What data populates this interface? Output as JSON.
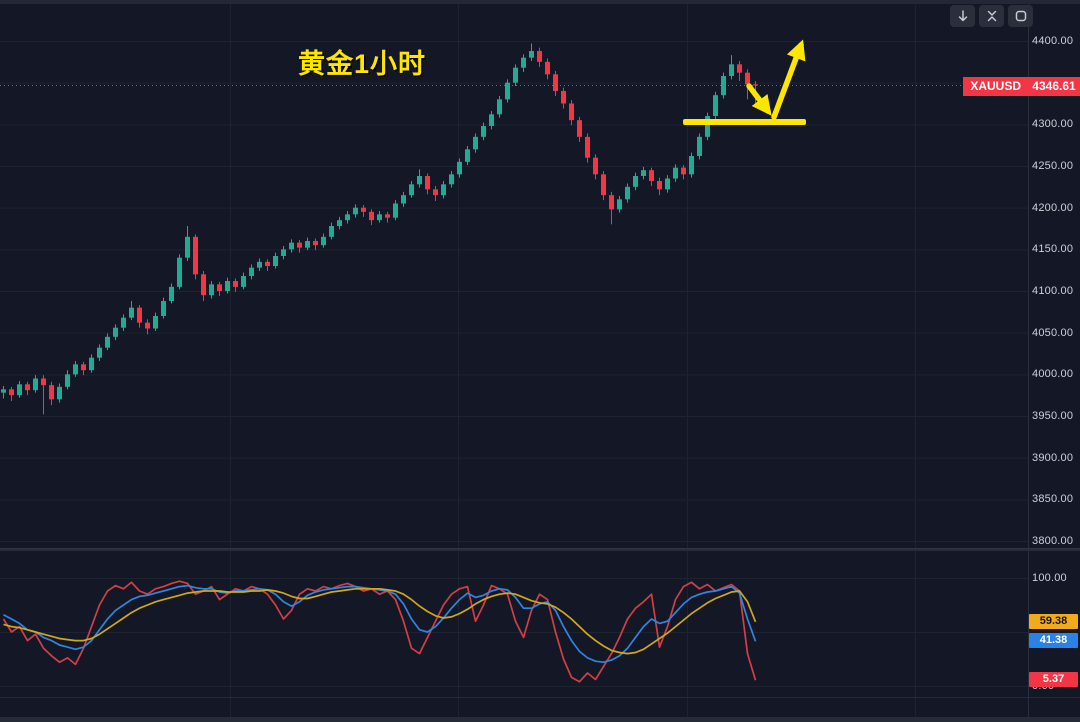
{
  "annotations": {
    "title": {
      "text": "黄金1小时",
      "color": "#ffe600"
    },
    "support_line": {
      "name": "yellow-support-line",
      "color": "#ffe600"
    },
    "bounce_arrow": {
      "name": "bounce-up-arrow",
      "color": "#ffe600"
    }
  },
  "toolbar": {
    "buttons": [
      {
        "name": "scroll-to-recent-bar",
        "icon": "down-arrow-icon"
      },
      {
        "name": "collapse-pane",
        "icon": "collapse-icon"
      },
      {
        "name": "fullscreen",
        "icon": "fullscreen-icon"
      }
    ]
  },
  "price_scale": {
    "last_price_label": {
      "symbol": "XAUUSD",
      "value": "4346.61",
      "bg": "#f23645"
    },
    "ticks": [
      {
        "label": "4400.00",
        "price": 4400
      },
      {
        "label": "4300.00",
        "price": 4300
      },
      {
        "label": "4250.00",
        "price": 4250
      },
      {
        "label": "4200.00",
        "price": 4200
      },
      {
        "label": "4150.00",
        "price": 4150
      },
      {
        "label": "4100.00",
        "price": 4100
      },
      {
        "label": "4050.00",
        "price": 4050
      },
      {
        "label": "4000.00",
        "price": 4000
      },
      {
        "label": "3950.00",
        "price": 3950
      },
      {
        "label": "3900.00",
        "price": 3900
      },
      {
        "label": "3850.00",
        "price": 3850
      },
      {
        "label": "3800.00",
        "price": 3800
      }
    ]
  },
  "indicator_scale": {
    "ticks": [
      {
        "label": "100.00",
        "value": 100
      },
      {
        "label": "0.00",
        "value": 0
      }
    ],
    "value_labels": [
      {
        "text": "59.38",
        "value": 59.38,
        "bg": "#f2a91c",
        "fg": "#11141c"
      },
      {
        "text": "41.38",
        "value": 41.38,
        "bg": "#2a82e4",
        "fg": "#ffffff"
      },
      {
        "text": "5.37",
        "value": 5.37,
        "bg": "#f23645",
        "fg": "#ffffff"
      }
    ]
  },
  "chart_data": [
    {
      "type": "candlestick",
      "symbol": "XAUUSD",
      "timeframe": "1小时",
      "last_price": 4346.61,
      "ylim": [
        3790,
        4410
      ],
      "up_color": "#22ab94",
      "down_color": "#f23645",
      "grid": true,
      "candles": [
        [
          3978,
          3986,
          3971,
          3982
        ],
        [
          3982,
          3985,
          3968,
          3975
        ],
        [
          3975,
          3992,
          3972,
          3988
        ],
        [
          3988,
          3991,
          3975,
          3981
        ],
        [
          3981,
          3999,
          3978,
          3995
        ],
        [
          3995,
          3999,
          3952,
          3987
        ],
        [
          3987,
          3991,
          3963,
          3970
        ],
        [
          3970,
          3989,
          3966,
          3985
        ],
        [
          3985,
          4005,
          3982,
          4000
        ],
        [
          4000,
          4016,
          3997,
          4012
        ],
        [
          4012,
          4015,
          3999,
          4005
        ],
        [
          4005,
          4024,
          4002,
          4020
        ],
        [
          4020,
          4036,
          4016,
          4032
        ],
        [
          4032,
          4049,
          4029,
          4045
        ],
        [
          4045,
          4060,
          4041,
          4056
        ],
        [
          4056,
          4072,
          4052,
          4068
        ],
        [
          4068,
          4088,
          4065,
          4080
        ],
        [
          4080,
          4083,
          4056,
          4062
        ],
        [
          4062,
          4066,
          4048,
          4055
        ],
        [
          4055,
          4074,
          4052,
          4070
        ],
        [
          4070,
          4092,
          4067,
          4088
        ],
        [
          4088,
          4109,
          4085,
          4105
        ],
        [
          4105,
          4144,
          4102,
          4140
        ],
        [
          4140,
          4178,
          4136,
          4165
        ],
        [
          4165,
          4168,
          4114,
          4120
        ],
        [
          4120,
          4124,
          4088,
          4095
        ],
        [
          4095,
          4112,
          4091,
          4108
        ],
        [
          4108,
          4111,
          4094,
          4100
        ],
        [
          4100,
          4116,
          4097,
          4112
        ],
        [
          4112,
          4115,
          4099,
          4105
        ],
        [
          4105,
          4122,
          4102,
          4118
        ],
        [
          4118,
          4132,
          4114,
          4128
        ],
        [
          4128,
          4139,
          4124,
          4135
        ],
        [
          4135,
          4138,
          4124,
          4130
        ],
        [
          4130,
          4146,
          4127,
          4142
        ],
        [
          4142,
          4154,
          4138,
          4150
        ],
        [
          4150,
          4162,
          4146,
          4158
        ],
        [
          4158,
          4161,
          4146,
          4152
        ],
        [
          4152,
          4164,
          4149,
          4160
        ],
        [
          4160,
          4163,
          4149,
          4155
        ],
        [
          4155,
          4169,
          4152,
          4165
        ],
        [
          4165,
          4182,
          4162,
          4178
        ],
        [
          4178,
          4189,
          4174,
          4185
        ],
        [
          4185,
          4196,
          4181,
          4192
        ],
        [
          4192,
          4204,
          4188,
          4200
        ],
        [
          4200,
          4203,
          4189,
          4195
        ],
        [
          4195,
          4198,
          4179,
          4185
        ],
        [
          4185,
          4196,
          4182,
          4192
        ],
        [
          4192,
          4195,
          4182,
          4188
        ],
        [
          4188,
          4209,
          4185,
          4205
        ],
        [
          4205,
          4219,
          4201,
          4215
        ],
        [
          4215,
          4232,
          4212,
          4228
        ],
        [
          4228,
          4246,
          4224,
          4238
        ],
        [
          4238,
          4241,
          4216,
          4222
        ],
        [
          4222,
          4226,
          4208,
          4215
        ],
        [
          4215,
          4232,
          4211,
          4228
        ],
        [
          4228,
          4244,
          4224,
          4240
        ],
        [
          4240,
          4259,
          4236,
          4255
        ],
        [
          4255,
          4274,
          4251,
          4270
        ],
        [
          4270,
          4289,
          4266,
          4285
        ],
        [
          4285,
          4302,
          4281,
          4298
        ],
        [
          4298,
          4316,
          4294,
          4312
        ],
        [
          4312,
          4334,
          4308,
          4330
        ],
        [
          4330,
          4354,
          4326,
          4350
        ],
        [
          4350,
          4372,
          4346,
          4368
        ],
        [
          4368,
          4384,
          4363,
          4380
        ],
        [
          4380,
          4397,
          4376,
          4388
        ],
        [
          4388,
          4392,
          4369,
          4375
        ],
        [
          4375,
          4379,
          4354,
          4360
        ],
        [
          4360,
          4364,
          4334,
          4340
        ],
        [
          4340,
          4344,
          4319,
          4325
        ],
        [
          4325,
          4329,
          4299,
          4305
        ],
        [
          4305,
          4309,
          4279,
          4285
        ],
        [
          4285,
          4289,
          4254,
          4260
        ],
        [
          4260,
          4264,
          4234,
          4240
        ],
        [
          4240,
          4244,
          4209,
          4215
        ],
        [
          4215,
          4219,
          4180,
          4198
        ],
        [
          4198,
          4214,
          4194,
          4210
        ],
        [
          4210,
          4229,
          4206,
          4225
        ],
        [
          4225,
          4242,
          4221,
          4238
        ],
        [
          4238,
          4249,
          4234,
          4245
        ],
        [
          4245,
          4248,
          4226,
          4232
        ],
        [
          4232,
          4236,
          4215,
          4222
        ],
        [
          4222,
          4239,
          4218,
          4235
        ],
        [
          4235,
          4252,
          4231,
          4248
        ],
        [
          4248,
          4251,
          4234,
          4240
        ],
        [
          4240,
          4266,
          4236,
          4262
        ],
        [
          4262,
          4289,
          4258,
          4285
        ],
        [
          4285,
          4314,
          4281,
          4310
        ],
        [
          4310,
          4339,
          4306,
          4335
        ],
        [
          4335,
          4362,
          4331,
          4358
        ],
        [
          4358,
          4383,
          4354,
          4372
        ],
        [
          4372,
          4376,
          4352,
          4362
        ],
        [
          4362,
          4366,
          4330,
          4348
        ],
        [
          4348,
          4352,
          4320,
          4346.61
        ]
      ]
    },
    {
      "type": "line",
      "name": "stochastic-oscillator",
      "ylim": [
        0,
        100
      ],
      "grid_levels": [
        100,
        50,
        0
      ],
      "series": [
        {
          "name": "fast",
          "color": "#d13f47",
          "last_value": 5.37,
          "values": [
            62,
            50,
            55,
            42,
            48,
            35,
            28,
            22,
            26,
            20,
            35,
            55,
            75,
            88,
            93,
            90,
            96,
            88,
            85,
            90,
            92,
            95,
            97,
            95,
            85,
            88,
            92,
            80,
            85,
            90,
            88,
            92,
            90,
            85,
            75,
            62,
            70,
            85,
            90,
            88,
            92,
            90,
            93,
            95,
            92,
            88,
            90,
            85,
            88,
            80,
            60,
            35,
            30,
            45,
            60,
            75,
            85,
            90,
            92,
            60,
            75,
            93,
            90,
            85,
            60,
            45,
            70,
            85,
            80,
            50,
            25,
            8,
            4,
            12,
            6,
            18,
            30,
            45,
            62,
            72,
            78,
            85,
            36,
            55,
            80,
            92,
            96,
            90,
            94,
            88,
            91,
            94,
            88,
            30,
            5.4
          ]
        },
        {
          "name": "slow",
          "color": "#3085e0",
          "last_value": 41.38,
          "values": [
            66,
            62,
            58,
            52,
            50,
            45,
            42,
            38,
            36,
            34,
            36,
            42,
            52,
            62,
            70,
            75,
            80,
            83,
            84,
            86,
            88,
            90,
            92,
            93,
            91,
            90,
            90,
            87,
            86,
            88,
            88,
            89,
            90,
            89,
            85,
            78,
            74,
            78,
            84,
            87,
            89,
            90,
            91,
            92,
            92,
            91,
            90,
            89,
            88,
            85,
            76,
            62,
            52,
            50,
            55,
            63,
            72,
            80,
            86,
            82,
            84,
            88,
            90,
            89,
            82,
            72,
            72,
            76,
            78,
            70,
            55,
            42,
            32,
            26,
            23,
            22,
            24,
            28,
            35,
            45,
            55,
            62,
            58,
            60,
            68,
            76,
            82,
            85,
            87,
            88,
            90,
            92,
            86,
            62,
            41.4
          ]
        },
        {
          "name": "signal",
          "color": "#cfa81e",
          "last_value": 59.38,
          "values": [
            57,
            55,
            54,
            52,
            50,
            48,
            46,
            44,
            43,
            42,
            42,
            44,
            48,
            53,
            58,
            63,
            68,
            72,
            75,
            78,
            80,
            82,
            84,
            86,
            87,
            88,
            88,
            88,
            87,
            87,
            87,
            88,
            88,
            89,
            88,
            86,
            83,
            81,
            81,
            83,
            85,
            87,
            88,
            89,
            90,
            90,
            90,
            90,
            89,
            88,
            85,
            80,
            74,
            69,
            65,
            63,
            64,
            67,
            71,
            76,
            80,
            83,
            85,
            86,
            85,
            82,
            79,
            77,
            76,
            73,
            68,
            62,
            55,
            48,
            42,
            37,
            33,
            31,
            30,
            31,
            34,
            39,
            44,
            49,
            55,
            61,
            67,
            72,
            77,
            81,
            84,
            87,
            88,
            78,
            59.4
          ]
        }
      ]
    }
  ]
}
